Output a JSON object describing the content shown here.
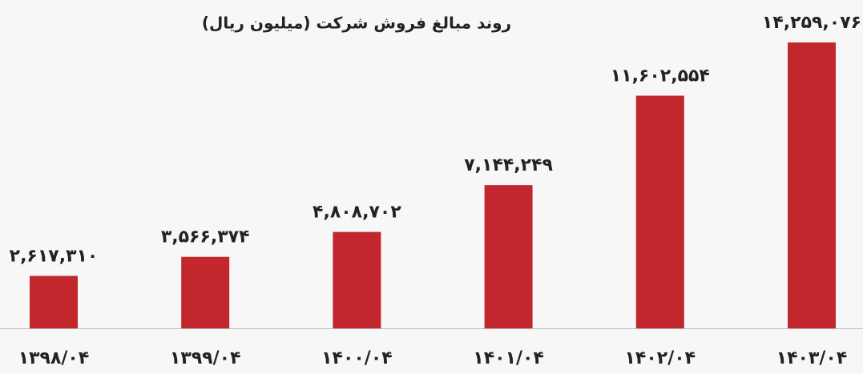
{
  "chart_data": {
    "type": "bar",
    "title": "روند مبالغ فروش شرکت (میلیون ریال)",
    "categories": [
      "۱۳۹۸/۰۴",
      "۱۳۹۹/۰۴",
      "۱۴۰۰/۰۴",
      "۱۴۰۱/۰۴",
      "۱۴۰۲/۰۴",
      "۱۴۰۳/۰۴"
    ],
    "values": [
      2617310,
      3566374,
      4808702,
      7144249,
      11602554,
      14259076
    ],
    "value_labels": [
      "۲,۶۱۷,۳۱۰",
      "۳,۵۶۶,۳۷۴",
      "۴,۸۰۸,۷۰۲",
      "۷,۱۴۴,۲۴۹",
      "۱۱,۶۰۲,۵۵۴",
      "۱۴,۲۵۹,۰۷۶"
    ],
    "color": "#c1272d"
  }
}
